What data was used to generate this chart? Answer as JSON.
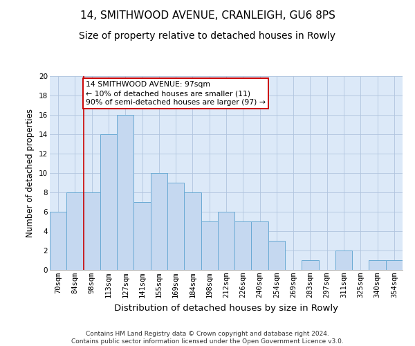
{
  "title1": "14, SMITHWOOD AVENUE, CRANLEIGH, GU6 8PS",
  "title2": "Size of property relative to detached houses in Rowly",
  "xlabel": "Distribution of detached houses by size in Rowly",
  "ylabel": "Number of detached properties",
  "categories": [
    "70sqm",
    "84sqm",
    "98sqm",
    "113sqm",
    "127sqm",
    "141sqm",
    "155sqm",
    "169sqm",
    "184sqm",
    "198sqm",
    "212sqm",
    "226sqm",
    "240sqm",
    "254sqm",
    "269sqm",
    "283sqm",
    "297sqm",
    "311sqm",
    "325sqm",
    "340sqm",
    "354sqm"
  ],
  "values": [
    6,
    8,
    8,
    14,
    16,
    7,
    10,
    9,
    8,
    5,
    6,
    5,
    5,
    3,
    0,
    1,
    0,
    2,
    0,
    1,
    1
  ],
  "bar_color": "#c5d8f0",
  "bar_edge_color": "#6aaad4",
  "highlight_line_color": "#cc0000",
  "annotation_line1": "14 SMITHWOOD AVENUE: 97sqm",
  "annotation_line2": "← 10% of detached houses are smaller (11)",
  "annotation_line3": "90% of semi-detached houses are larger (97) →",
  "annotation_box_color": "#ffffff",
  "annotation_box_edge": "#cc0000",
  "ylim": [
    0,
    20
  ],
  "yticks": [
    0,
    2,
    4,
    6,
    8,
    10,
    12,
    14,
    16,
    18,
    20
  ],
  "grid_color": "#b0c4de",
  "background_color": "#dce9f8",
  "footer": "Contains HM Land Registry data © Crown copyright and database right 2024.\nContains public sector information licensed under the Open Government Licence v3.0.",
  "title1_fontsize": 11,
  "title2_fontsize": 10,
  "xlabel_fontsize": 9.5,
  "ylabel_fontsize": 8.5,
  "tick_fontsize": 7.5,
  "ann_fontsize": 7.8,
  "footer_fontsize": 6.5
}
